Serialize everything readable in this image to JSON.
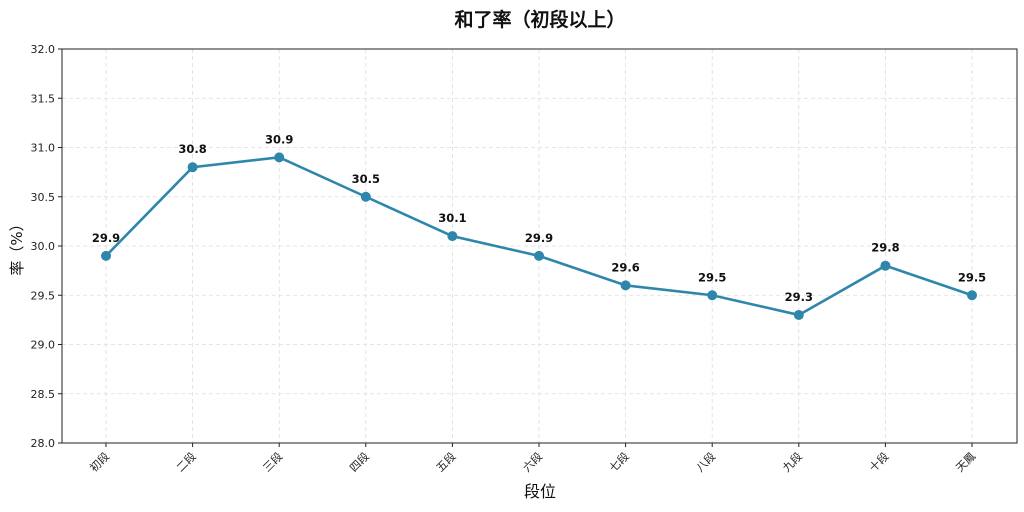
{
  "chart_data": {
    "type": "line",
    "title": "和了率（初段以上）",
    "xlabel": "段位",
    "ylabel": "率（%）",
    "categories": [
      "初段",
      "二段",
      "三段",
      "四段",
      "五段",
      "六段",
      "七段",
      "八段",
      "九段",
      "十段",
      "天鳳"
    ],
    "series": [
      {
        "name": "和了率",
        "values": [
          29.9,
          30.8,
          30.9,
          30.5,
          30.1,
          29.9,
          29.6,
          29.5,
          29.3,
          29.8,
          29.5
        ]
      }
    ],
    "ylim": [
      28.0,
      32.0
    ],
    "yticks": [
      "28.0",
      "28.5",
      "29.0",
      "29.5",
      "30.0",
      "30.5",
      "31.0",
      "31.5",
      "32.0"
    ],
    "grid": true,
    "line_color": "#2e86ab"
  }
}
